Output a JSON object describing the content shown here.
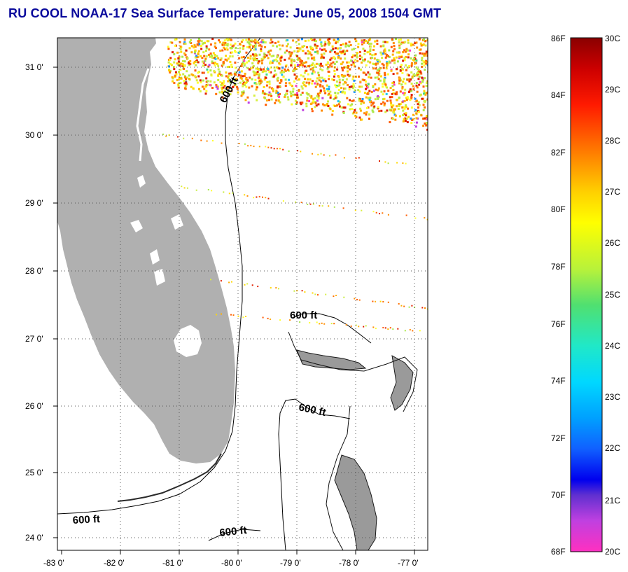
{
  "title": "RU COOL  NOAA-17  Sea Surface Temperature:  June 05, 2008 1504 GMT",
  "map": {
    "lon_labels": [
      "-83 0'",
      "-82 0'",
      "-81 0'",
      "-80 0'",
      "-79 0'",
      "-78 0'",
      "-77 0'"
    ],
    "lat_labels": [
      "31 0'",
      "30 0'",
      "29 0'",
      "28 0'",
      "27 0'",
      "26 0'",
      "25 0'",
      "24 0'"
    ],
    "contour_labels": [
      "600 ft",
      "600 ft",
      "600 ft",
      "600 ft",
      "600 ft"
    ],
    "colors": {
      "land": "#b0b0b0",
      "grid": "#555555",
      "contour": "#000000"
    }
  },
  "colorbar": {
    "fahrenheit_labels": [
      "86F",
      "84F",
      "82F",
      "80F",
      "78F",
      "76F",
      "74F",
      "72F",
      "70F",
      "68F"
    ],
    "celsius_labels": [
      "30C",
      "29C",
      "28C",
      "27C",
      "26C",
      "25C",
      "24C",
      "23C",
      "22C",
      "21C",
      "20C"
    ]
  }
}
